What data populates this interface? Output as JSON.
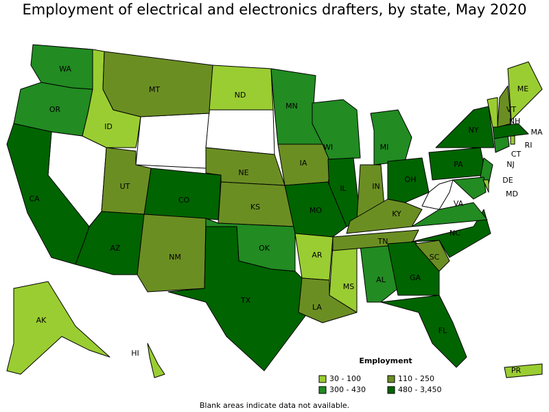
{
  "title": "Employment of electrical and electronics drafters, by state, May 2020",
  "legend": {
    "title": "Employment",
    "items": [
      {
        "label": "30 - 100",
        "color": "#9acd32"
      },
      {
        "label": "110 - 250",
        "color": "#6b8e23"
      },
      {
        "label": "300 - 430",
        "color": "#228b22"
      },
      {
        "label": "480 - 3,450",
        "color": "#006400"
      }
    ]
  },
  "states": [
    {
      "label": "WA",
      "color": "#228b22"
    },
    {
      "label": "OR",
      "color": "#228b22"
    },
    {
      "label": "CA",
      "color": "#006400"
    },
    {
      "label": "ID",
      "color": "#9acd32"
    },
    {
      "label": "MT",
      "color": "#6b8e23"
    },
    {
      "label": "ND",
      "color": "#9acd32"
    },
    {
      "label": "NE",
      "color": "#6b8e23"
    },
    {
      "label": "CO",
      "color": "#006400"
    },
    {
      "label": "UT",
      "color": "#6b8e23"
    },
    {
      "label": "AZ",
      "color": "#006400"
    },
    {
      "label": "NM",
      "color": "#6b8e23"
    },
    {
      "label": "KS",
      "color": "#6b8e23"
    },
    {
      "label": "OK",
      "color": "#228b22"
    },
    {
      "label": "TX",
      "color": "#006400"
    },
    {
      "label": "MN",
      "color": "#228b22"
    },
    {
      "label": "WI",
      "color": "#228b22"
    },
    {
      "label": "MI",
      "color": "#228b22"
    },
    {
      "label": "IA",
      "color": "#6b8e23"
    },
    {
      "label": "IL",
      "color": "#006400"
    },
    {
      "label": "IN",
      "color": "#6b8e23"
    },
    {
      "label": "OH",
      "color": "#006400"
    },
    {
      "label": "MO",
      "color": "#006400"
    },
    {
      "label": "AR",
      "color": "#9acd32"
    },
    {
      "label": "LA",
      "color": "#6b8e23"
    },
    {
      "label": "MS",
      "color": "#9acd32"
    },
    {
      "label": "AL",
      "color": "#228b22"
    },
    {
      "label": "TN",
      "color": "#6b8e23"
    },
    {
      "label": "KY",
      "color": "#6b8e23"
    },
    {
      "label": "GA",
      "color": "#006400"
    },
    {
      "label": "FL",
      "color": "#006400"
    },
    {
      "label": "SC",
      "color": "#6b8e23"
    },
    {
      "label": "NC",
      "color": "#006400"
    },
    {
      "label": "VA",
      "color": "#228b22"
    },
    {
      "label": "PA",
      "color": "#006400"
    },
    {
      "label": "NY",
      "color": "#006400"
    },
    {
      "label": "NJ",
      "color": "#228b22"
    },
    {
      "label": "MD",
      "color": "#228b22"
    },
    {
      "label": "DE",
      "color": "#9acd32"
    },
    {
      "label": "CT",
      "color": "#228b22"
    },
    {
      "label": "RI",
      "color": "#9acd32"
    },
    {
      "label": "MA",
      "color": "#006400"
    },
    {
      "label": "VT",
      "color": "#9acd32"
    },
    {
      "label": "NH",
      "color": "#6b8e23"
    },
    {
      "label": "ME",
      "color": "#9acd32"
    },
    {
      "label": "AK",
      "color": "#9acd32"
    },
    {
      "label": "HI",
      "color": "#9acd32"
    },
    {
      "label": "PR",
      "color": "#9acd32"
    }
  ],
  "note": "Blank areas indicate data not available."
}
